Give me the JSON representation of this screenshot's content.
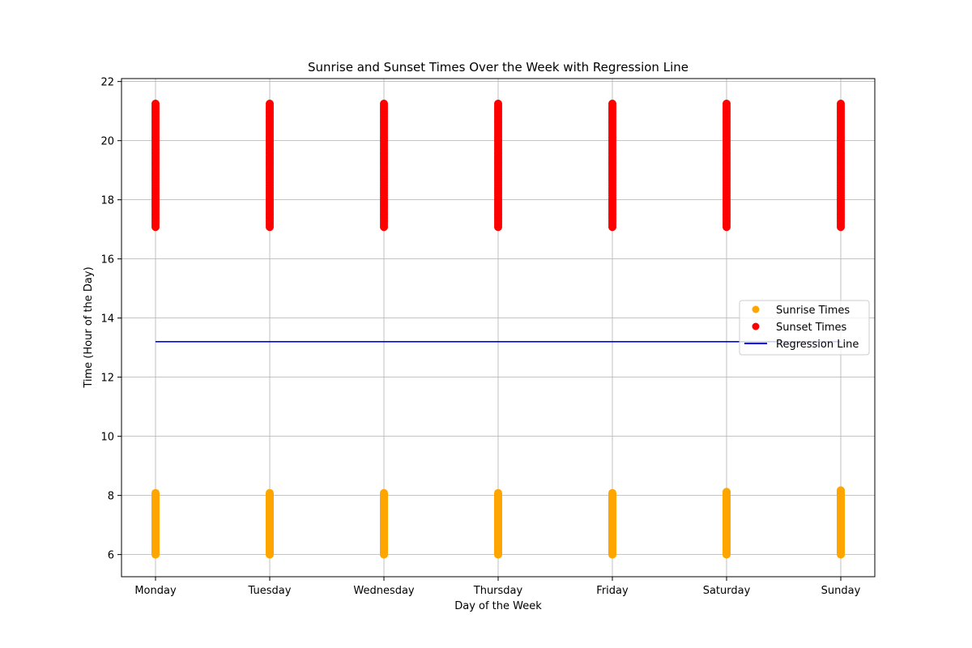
{
  "chart_data": {
    "type": "scatter",
    "title": "Sunrise and Sunset Times Over the Week with Regression Line",
    "xlabel": "Day of the Week",
    "ylabel": "Time (Hour of the Day)",
    "categories": [
      "Monday",
      "Tuesday",
      "Wednesday",
      "Thursday",
      "Friday",
      "Saturday",
      "Sunday"
    ],
    "ylim": [
      5.25,
      22.1
    ],
    "yticks": [
      6,
      8,
      10,
      12,
      14,
      16,
      18,
      20,
      22
    ],
    "grid": true,
    "legend_position": "center-right",
    "series": [
      {
        "name": "Sunrise Times",
        "kind": "scatter",
        "color": "#ffa500",
        "y_range_per_category": [
          [
            6.0,
            8.08
          ],
          [
            6.0,
            8.08
          ],
          [
            6.0,
            8.08
          ],
          [
            6.0,
            8.08
          ],
          [
            6.0,
            8.08
          ],
          [
            6.0,
            8.12
          ],
          [
            6.0,
            8.17
          ]
        ]
      },
      {
        "name": "Sunset Times",
        "kind": "scatter",
        "color": "#ff0000",
        "y_range_per_category": [
          [
            17.08,
            21.25
          ],
          [
            17.08,
            21.25
          ],
          [
            17.08,
            21.25
          ],
          [
            17.08,
            21.25
          ],
          [
            17.08,
            21.25
          ],
          [
            17.08,
            21.25
          ],
          [
            17.08,
            21.25
          ]
        ]
      },
      {
        "name": "Regression Line",
        "kind": "line",
        "color": "#0000ff",
        "x_start": "Monday",
        "x_end": "Sunday",
        "y_start": 13.2,
        "y_end": 13.2
      }
    ]
  }
}
